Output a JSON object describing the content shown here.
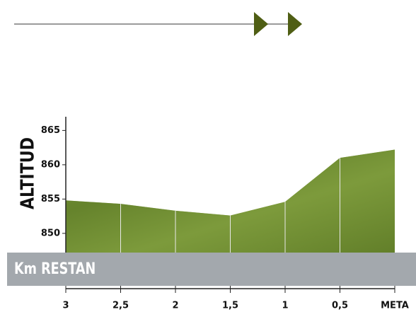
{
  "chart_data": {
    "type": "area",
    "ylabel": "ALTITUD",
    "xlabel": "Km RESTAN",
    "x": [
      3,
      2.5,
      2,
      1.5,
      1,
      0.5,
      0
    ],
    "values": [
      854.8,
      854.3,
      853.3,
      852.6,
      854.6,
      861.0,
      862.2
    ],
    "color": "#6f8c2f",
    "xlim": [
      3,
      0
    ],
    "xticks": [
      3,
      {
        "value": 2.5,
        "label": "2,5"
      },
      2,
      {
        "value": 1.5,
        "label": "1,5"
      },
      1,
      {
        "value": 0.5,
        "label": "0,5"
      },
      {
        "value": 0,
        "label": "META"
      }
    ],
    "ylim": [
      847.2,
      867
    ],
    "yticks": [
      850,
      855,
      860,
      865
    ],
    "grid": true
  }
}
